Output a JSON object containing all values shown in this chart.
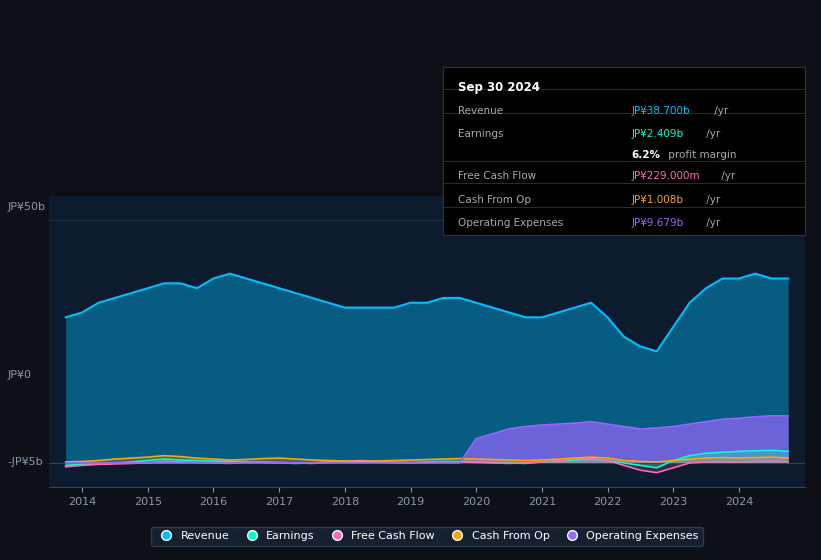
{
  "bg_color": "#0d1117",
  "plot_bg_color": "#0d1b2e",
  "ylabel_top": "JP¥50b",
  "ylabel_zero": "JP¥0",
  "ylabel_neg": "-JP¥5b",
  "ylim": [
    -5,
    55
  ],
  "xticks": [
    2014,
    2015,
    2016,
    2017,
    2018,
    2019,
    2020,
    2021,
    2022,
    2023,
    2024
  ],
  "colors": {
    "revenue": "#00bfff",
    "earnings": "#00ffcc",
    "free_cash_flow": "#ff69b4",
    "cash_from_op": "#ffa500",
    "operating_expenses": "#9966ff"
  },
  "info_box_title": "Sep 30 2024",
  "legend": [
    {
      "label": "Revenue",
      "color": "#00bfff"
    },
    {
      "label": "Earnings",
      "color": "#00ffcc"
    },
    {
      "label": "Free Cash Flow",
      "color": "#ff69b4"
    },
    {
      "label": "Cash From Op",
      "color": "#ffa500"
    },
    {
      "label": "Operating Expenses",
      "color": "#9966ff"
    }
  ],
  "x": [
    2013.75,
    2014.0,
    2014.25,
    2014.5,
    2014.75,
    2015.0,
    2015.25,
    2015.5,
    2015.75,
    2016.0,
    2016.25,
    2016.5,
    2016.75,
    2017.0,
    2017.25,
    2017.5,
    2017.75,
    2018.0,
    2018.25,
    2018.5,
    2018.75,
    2019.0,
    2019.25,
    2019.5,
    2019.75,
    2020.0,
    2020.25,
    2020.5,
    2020.75,
    2021.0,
    2021.25,
    2021.5,
    2021.75,
    2022.0,
    2022.25,
    2022.5,
    2022.75,
    2023.0,
    2023.25,
    2023.5,
    2023.75,
    2024.0,
    2024.25,
    2024.5,
    2024.75
  ],
  "revenue": [
    30,
    31,
    33,
    34,
    35,
    36,
    37,
    37,
    36,
    38,
    39,
    38,
    37,
    36,
    35,
    34,
    33,
    32,
    32,
    32,
    32,
    33,
    33,
    34,
    34,
    33,
    32,
    31,
    30,
    30,
    31,
    32,
    33,
    30,
    26,
    24,
    23,
    28,
    33,
    36,
    38,
    38,
    39,
    38,
    38
  ],
  "earnings": [
    -0.5,
    -0.3,
    -0.2,
    0.0,
    0.2,
    0.5,
    0.8,
    0.6,
    0.5,
    0.4,
    0.3,
    0.2,
    0.1,
    0.0,
    -0.1,
    0.0,
    0.2,
    0.3,
    0.3,
    0.2,
    0.1,
    0.1,
    0.2,
    0.3,
    0.3,
    0.2,
    0.1,
    0.0,
    -0.1,
    0.2,
    0.4,
    0.6,
    0.8,
    0.5,
    0.0,
    -0.5,
    -1.0,
    0.5,
    1.5,
    2.0,
    2.2,
    2.4,
    2.5,
    2.6,
    2.4
  ],
  "free_cash_flow": [
    -0.8,
    -0.5,
    -0.3,
    -0.2,
    -0.1,
    0.0,
    0.3,
    0.2,
    0.1,
    0.0,
    -0.1,
    0.1,
    0.2,
    0.1,
    0.0,
    -0.1,
    0.1,
    0.3,
    0.5,
    0.3,
    0.1,
    0.0,
    0.1,
    0.2,
    0.2,
    0.1,
    0.0,
    -0.1,
    0.0,
    0.2,
    0.5,
    0.8,
    1.0,
    0.5,
    -0.5,
    -1.5,
    -2.0,
    -1.0,
    0.0,
    0.2,
    0.2,
    0.2,
    0.3,
    0.4,
    0.23
  ],
  "cash_from_op": [
    0.2,
    0.3,
    0.5,
    0.8,
    1.0,
    1.2,
    1.5,
    1.3,
    1.0,
    0.8,
    0.6,
    0.7,
    0.9,
    1.0,
    0.8,
    0.6,
    0.5,
    0.4,
    0.3,
    0.4,
    0.5,
    0.6,
    0.7,
    0.8,
    0.9,
    0.8,
    0.7,
    0.6,
    0.5,
    0.6,
    0.8,
    1.0,
    1.2,
    1.0,
    0.5,
    0.3,
    0.2,
    0.5,
    0.8,
    1.0,
    1.1,
    1.0,
    1.1,
    1.2,
    1.0
  ],
  "operating_expenses": [
    0.0,
    0.0,
    0.0,
    0.0,
    0.0,
    0.0,
    0.0,
    0.0,
    0.0,
    0.0,
    0.0,
    0.0,
    0.0,
    0.0,
    0.0,
    0.0,
    0.0,
    0.0,
    0.0,
    0.0,
    0.0,
    0.0,
    0.0,
    0.0,
    0.0,
    5.0,
    6.0,
    7.0,
    7.5,
    7.8,
    8.0,
    8.2,
    8.5,
    8.0,
    7.5,
    7.0,
    7.2,
    7.5,
    8.0,
    8.5,
    9.0,
    9.2,
    9.5,
    9.7,
    9.679
  ]
}
